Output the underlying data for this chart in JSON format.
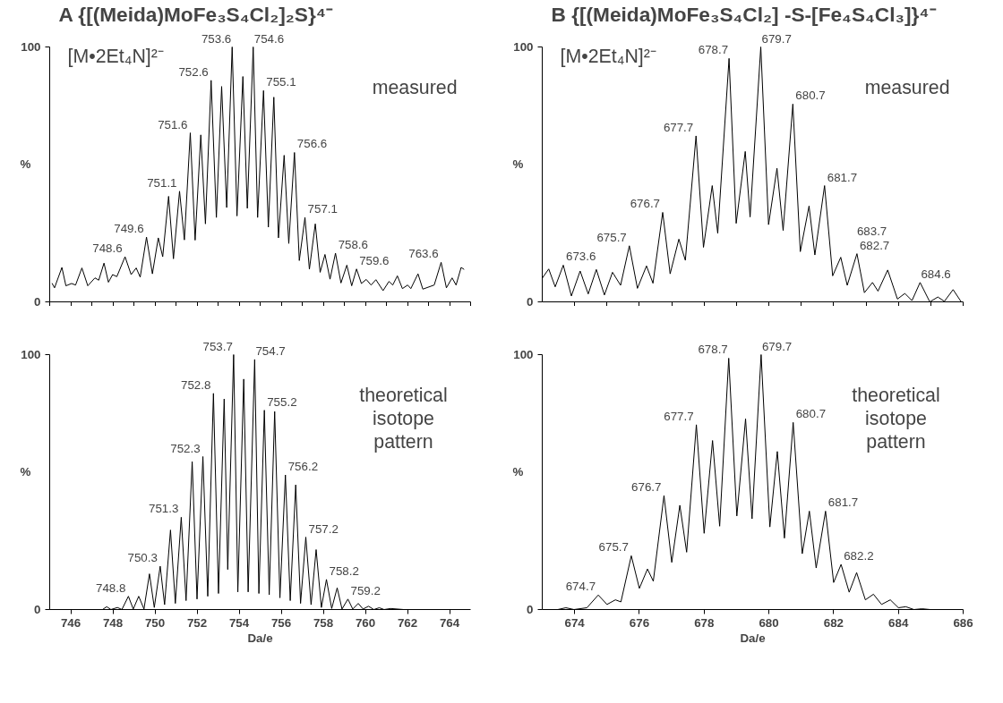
{
  "chart_data": [
    {
      "type": "line",
      "title": "A   {[(Meida)MoFe₃S₄Cl₂]₂S}⁴⁻",
      "xlim": [
        745,
        765
      ],
      "xticks": [
        {
          "value": 745,
          "label": null
        },
        {
          "value": 746,
          "label": null
        },
        {
          "value": 747,
          "label": null
        },
        {
          "value": 748,
          "label": null
        },
        {
          "value": 749,
          "label": null
        },
        {
          "value": 750,
          "label": null
        },
        {
          "value": 751,
          "label": null
        },
        {
          "value": 752,
          "label": null
        },
        {
          "value": 753,
          "label": null
        },
        {
          "value": 754,
          "label": null
        },
        {
          "value": 755,
          "label": null
        },
        {
          "value": 756,
          "label": null
        },
        {
          "value": 757,
          "label": null
        },
        {
          "value": 758,
          "label": null
        },
        {
          "value": 759,
          "label": null
        },
        {
          "value": 760,
          "label": null
        },
        {
          "value": 761,
          "label": null
        },
        {
          "value": 762,
          "label": null
        },
        {
          "value": 763,
          "label": null
        },
        {
          "value": 764,
          "label": null
        },
        {
          "value": 765,
          "label": null
        }
      ],
      "ylim": [
        0,
        100
      ],
      "yticks": [
        0,
        100
      ],
      "ylabel": "%",
      "tick_labels": "y",
      "grid": false,
      "marker": "none",
      "line_style": "solid",
      "x": [
        745.12,
        745.23,
        745.58,
        745.77,
        746.04,
        746.23,
        746.53,
        746.81,
        747.15,
        747.33,
        747.58,
        747.79,
        747.99,
        748.19,
        748.58,
        748.87,
        749.11,
        749.3,
        749.6,
        749.88,
        750.16,
        750.37,
        750.65,
        750.88,
        751.17,
        751.4,
        751.68,
        751.91,
        752.18,
        752.4,
        752.67,
        752.92,
        753.17,
        753.41,
        753.67,
        753.9,
        754.18,
        754.39,
        754.67,
        754.88,
        755.16,
        755.39,
        755.65,
        755.87,
        756.14,
        756.36,
        756.63,
        756.86,
        757.13,
        757.34,
        757.62,
        757.85,
        758.08,
        758.32,
        758.58,
        758.84,
        759.12,
        759.35,
        759.58,
        759.81,
        760.04,
        760.27,
        760.5,
        760.84,
        761.12,
        761.3,
        761.52,
        761.76,
        762.01,
        762.16,
        762.5,
        762.73,
        763.27,
        763.6,
        763.85,
        764.12,
        764.31,
        764.55,
        764.68
      ],
      "series": [
        {
          "color": "#000000",
          "values": [
            7.2,
            5.5,
            13.5,
            6.3,
            7.2,
            6.6,
            13.3,
            6.3,
            9.4,
            8.5,
            15.2,
            7.7,
            10.7,
            9.9,
            17.7,
            10.7,
            13.3,
            9.7,
            25.4,
            11.0,
            25.1,
            17.7,
            41.4,
            16.9,
            43.4,
            24.3,
            66.3,
            24.2,
            65.5,
            30.6,
            86.9,
            33.1,
            84.5,
            37.0,
            100,
            33.7,
            88.4,
            36.7,
            100,
            33.1,
            82.9,
            29.3,
            80.3,
            25.1,
            57.5,
            22.9,
            58.6,
            16.2,
            33.1,
            12.8,
            30.6,
            11.6,
            18.6,
            8.9,
            19.1,
            7.4,
            14.4,
            6.3,
            12.9,
            7.2,
            8.8,
            6.6,
            8.7,
            4.4,
            8.0,
            6.6,
            10.2,
            5.2,
            6.6,
            5.2,
            11.0,
            5.0,
            6.6,
            15.5,
            5.5,
            9.4,
            6.6,
            13.5,
            12.8
          ]
        }
      ],
      "annotations": [
        "[M•2Et₄N]²⁻",
        "measured",
        {
          "text": "748.6",
          "x": 748.58,
          "y": 17.7
        },
        {
          "text": "749.6",
          "x": 749.6,
          "y": 25.4
        },
        {
          "text": "751.1",
          "x": 751.17,
          "y": 43.4
        },
        {
          "text": "751.6",
          "x": 751.68,
          "y": 66.3
        },
        {
          "text": "752.6",
          "x": 752.67,
          "y": 86.9
        },
        {
          "text": "753.6",
          "x": 753.67,
          "y": 100
        },
        {
          "text": "754.6",
          "x": 754.67,
          "y": 100
        },
        {
          "text": "755.1",
          "x": 755.16,
          "y": 82.9
        },
        {
          "text": "756.6",
          "x": 756.63,
          "y": 58.6
        },
        {
          "text": "757.1",
          "x": 757.13,
          "y": 33.1
        },
        {
          "text": "758.6",
          "x": 758.58,
          "y": 19.1
        },
        {
          "text": "759.6",
          "x": 759.58,
          "y": 12.9
        },
        {
          "text": "763.6",
          "x": 763.6,
          "y": 15.5
        }
      ]
    },
    {
      "type": "line",
      "title": "B  {[(Meida)MoFe₃S₄Cl₂] -S-[Fe₄S₄Cl₃]}⁴⁻",
      "xlim": [
        673,
        686
      ],
      "xticks": [
        {
          "value": 674,
          "label": null
        },
        {
          "value": 675,
          "label": null
        },
        {
          "value": 676,
          "label": null
        },
        {
          "value": 677,
          "label": null
        },
        {
          "value": 678,
          "label": null
        },
        {
          "value": 679,
          "label": null
        },
        {
          "value": 680,
          "label": null
        },
        {
          "value": 681,
          "label": null
        },
        {
          "value": 682,
          "label": null
        },
        {
          "value": 683,
          "label": null
        },
        {
          "value": 684,
          "label": null
        },
        {
          "value": 685,
          "label": null
        },
        {
          "value": 686,
          "label": null
        }
      ],
      "ylim": [
        0,
        100
      ],
      "yticks": [
        0,
        100
      ],
      "ylabel": "%",
      "tick_labels": "y",
      "grid": false,
      "marker": "none",
      "line_style": "solid",
      "x": [
        673.0,
        673.2,
        673.4,
        673.65,
        673.9,
        674.17,
        674.42,
        674.67,
        674.92,
        675.17,
        675.42,
        675.69,
        675.94,
        676.22,
        676.42,
        676.72,
        676.95,
        677.22,
        677.42,
        677.75,
        677.98,
        678.25,
        678.42,
        678.77,
        678.99,
        679.27,
        679.42,
        679.75,
        679.99,
        680.25,
        680.44,
        680.74,
        680.97,
        681.24,
        681.42,
        681.72,
        681.97,
        682.22,
        682.42,
        682.72,
        682.95,
        683.2,
        683.37,
        683.67,
        683.97,
        684.2,
        684.42,
        684.67,
        684.97,
        685.22,
        685.42,
        685.69,
        685.94
      ],
      "series": [
        {
          "color": "#000000",
          "values": [
            9.3,
            12.9,
            5.9,
            14.4,
            2.3,
            12.1,
            3.1,
            12.7,
            2.7,
            11.6,
            6.5,
            22.0,
            5.3,
            14.1,
            7.3,
            35.1,
            11.0,
            24.6,
            16.3,
            65.1,
            21.4,
            45.6,
            26.9,
            95.5,
            30.8,
            59.0,
            33.3,
            100,
            30.3,
            52.4,
            28.0,
            77.6,
            19.7,
            37.6,
            18.4,
            45.6,
            10.2,
            17.5,
            6.5,
            18.9,
            3.6,
            7.6,
            4.2,
            12.5,
            1.1,
            3.3,
            0.5,
            7.6,
            0,
            1.9,
            0.2,
            4.8,
            0
          ]
        }
      ],
      "annotations": [
        "[M•2Et₄N]²⁻",
        "measured",
        {
          "text": "673.6",
          "x": 673.65,
          "y": 14.4
        },
        {
          "text": "675.7",
          "x": 675.69,
          "y": 22.0
        },
        {
          "text": "676.7",
          "x": 676.72,
          "y": 35.1
        },
        {
          "text": "677.7",
          "x": 677.75,
          "y": 65.1
        },
        {
          "text": "678.7",
          "x": 678.77,
          "y": 95.5
        },
        {
          "text": "679.7",
          "x": 679.75,
          "y": 100
        },
        {
          "text": "680.7",
          "x": 680.74,
          "y": 77.6
        },
        {
          "text": "681.7",
          "x": 681.72,
          "y": 45.6
        },
        {
          "text": "682.7",
          "x": 682.72,
          "y": 18.9
        },
        {
          "text": "683.7",
          "x": 683.67,
          "y": 12.5
        },
        {
          "text": "684.6",
          "x": 684.67,
          "y": 7.6
        }
      ]
    },
    {
      "type": "line",
      "xlabel": "Da/e",
      "xlim": [
        745,
        765
      ],
      "xticks": [
        746,
        748,
        750,
        752,
        754,
        756,
        758,
        760,
        762,
        764
      ],
      "ylim": [
        0,
        100
      ],
      "yticks": [
        0,
        100
      ],
      "ylabel": "%",
      "grid": false,
      "marker": "none",
      "line_style": "solid",
      "x": [
        745.0,
        747.51,
        747.71,
        747.91,
        748.22,
        748.43,
        748.74,
        748.97,
        749.23,
        749.48,
        749.74,
        749.97,
        750.25,
        750.46,
        750.74,
        750.97,
        751.25,
        751.48,
        751.77,
        752.0,
        752.28,
        752.51,
        752.78,
        753.02,
        753.29,
        753.46,
        753.74,
        753.94,
        754.22,
        754.43,
        754.74,
        754.94,
        755.2,
        755.43,
        755.69,
        755.94,
        756.2,
        756.43,
        756.69,
        756.92,
        757.17,
        757.42,
        757.66,
        757.91,
        758.15,
        758.4,
        758.66,
        758.89,
        759.17,
        759.4,
        759.66,
        759.89,
        760.15,
        760.4,
        760.66,
        760.89,
        761.2,
        761.82,
        764.8
      ],
      "series": [
        {
          "color": "#000000",
          "values": [
            0,
            0,
            1.1,
            0,
            0.8,
            0,
            5.2,
            0.2,
            5.2,
            0.2,
            14.0,
            0.8,
            17.0,
            1.9,
            31.2,
            2.4,
            36.2,
            3.5,
            58.0,
            4.1,
            60.0,
            5.2,
            84.8,
            6.3,
            82.6,
            15.7,
            100,
            6.9,
            90.4,
            6.9,
            98.1,
            6.3,
            78.2,
            5.8,
            77.7,
            4.6,
            52.8,
            3.5,
            48.9,
            2.4,
            28.4,
            1.9,
            23.5,
            0.8,
            11.8,
            0.4,
            8.5,
            0.2,
            4.1,
            0.2,
            2.4,
            0.2,
            1.3,
            0,
            0.7,
            0,
            0.4,
            0,
            0
          ]
        }
      ],
      "annotations": [
        "theoretical\nisotope\npattern",
        {
          "text": "748.8",
          "x": 748.74,
          "y": 5.2
        },
        {
          "text": "750.3",
          "x": 750.25,
          "y": 17.0
        },
        {
          "text": "751.3",
          "x": 751.25,
          "y": 36.2
        },
        {
          "text": "752.3",
          "x": 752.28,
          "y": 60.0
        },
        {
          "text": "752.8",
          "x": 752.78,
          "y": 84.8
        },
        {
          "text": "753.7",
          "x": 753.74,
          "y": 100
        },
        {
          "text": "754.7",
          "x": 754.74,
          "y": 98.1
        },
        {
          "text": "755.2",
          "x": 755.2,
          "y": 78.2
        },
        {
          "text": "756.2",
          "x": 756.2,
          "y": 52.8
        },
        {
          "text": "757.2",
          "x": 757.17,
          "y": 28.4
        },
        {
          "text": "758.2",
          "x": 758.15,
          "y": 11.8
        },
        {
          "text": "759.2",
          "x": 759.17,
          "y": 4.1
        }
      ]
    },
    {
      "type": "line",
      "xlabel": "Da/e",
      "xlim": [
        673,
        686
      ],
      "xticks": [
        674,
        676,
        678,
        680,
        682,
        684,
        686
      ],
      "ylim": [
        0,
        100
      ],
      "yticks": [
        0,
        100
      ],
      "ylabel": "%",
      "grid": false,
      "marker": "none",
      "line_style": "solid",
      "x": [
        673.03,
        673.48,
        673.73,
        673.98,
        674.38,
        674.73,
        675.0,
        675.26,
        675.43,
        675.75,
        676.0,
        676.25,
        676.43,
        676.76,
        677.0,
        677.25,
        677.46,
        677.76,
        678.0,
        678.26,
        678.48,
        678.76,
        679.01,
        679.28,
        679.48,
        679.76,
        680.03,
        680.26,
        680.48,
        680.75,
        681.03,
        681.25,
        681.46,
        681.75,
        682.0,
        682.23,
        682.48,
        682.71,
        682.98,
        683.23,
        683.48,
        683.75,
        684.0,
        684.23,
        684.48,
        684.73,
        684.98,
        685.98
      ],
      "series": [
        {
          "color": "#000000",
          "values": [
            0,
            0,
            0.7,
            0,
            0.7,
            5.7,
            2.0,
            3.8,
            3.0,
            21.1,
            8.3,
            15.9,
            11.1,
            44.7,
            18.5,
            40.9,
            22.5,
            72.5,
            29.9,
            66.3,
            32.7,
            98.6,
            36.7,
            74.8,
            35.6,
            100,
            32.4,
            62.0,
            28.0,
            73.4,
            21.9,
            38.6,
            16.3,
            38.6,
            10.6,
            17.7,
            6.8,
            14.5,
            3.8,
            6.0,
            2.0,
            3.8,
            0.7,
            1.1,
            0,
            0.3,
            0,
            0
          ]
        }
      ],
      "annotations": [
        "theoretical\nisotope\npattern",
        {
          "text": "674.7",
          "x": 674.73,
          "y": 5.7
        },
        {
          "text": "675.7",
          "x": 675.75,
          "y": 21.1
        },
        {
          "text": "676.7",
          "x": 676.76,
          "y": 44.7
        },
        {
          "text": "677.7",
          "x": 677.76,
          "y": 72.5
        },
        {
          "text": "678.7",
          "x": 678.76,
          "y": 98.6
        },
        {
          "text": "679.7",
          "x": 679.76,
          "y": 100
        },
        {
          "text": "680.7",
          "x": 680.75,
          "y": 73.4
        },
        {
          "text": "681.7",
          "x": 681.75,
          "y": 38.6
        },
        {
          "text": "682.2",
          "x": 682.23,
          "y": 17.7
        }
      ]
    }
  ]
}
